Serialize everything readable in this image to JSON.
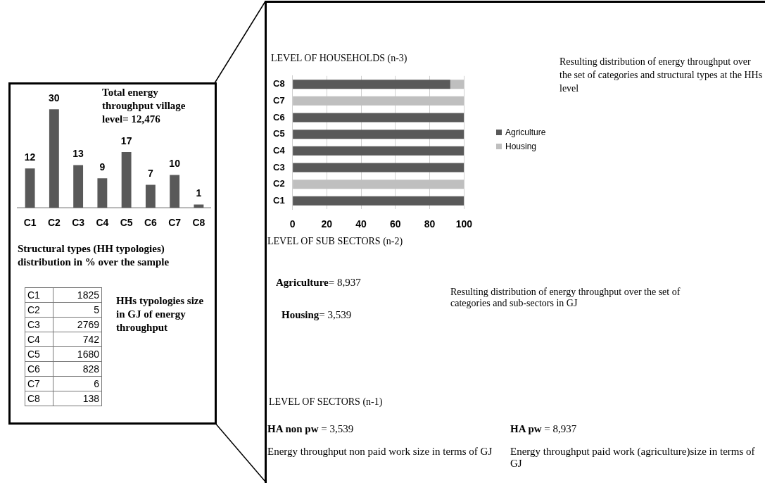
{
  "chart_data": [
    {
      "type": "bar",
      "title": "Total energy throughput  village level= 12,476",
      "xlabel": "Structural types (HH typologies) distribution in % over the sample",
      "categories": [
        "C1",
        "C2",
        "C3",
        "C4",
        "C5",
        "C6",
        "C7",
        "C8"
      ],
      "values": [
        12,
        30,
        13,
        9,
        17,
        7,
        10,
        1
      ],
      "color": "#595959",
      "data_labels": true,
      "grid": false,
      "legend": false
    },
    {
      "type": "other",
      "title": "HHs typologies size in GJ of energy throughput",
      "categories": [
        "C1",
        "C2",
        "C3",
        "C4",
        "C5",
        "C6",
        "C7",
        "C8"
      ],
      "values": [
        1825,
        5,
        2769,
        742,
        1680,
        828,
        6,
        138
      ],
      "data_labels": true
    },
    {
      "type": "bar",
      "orientation": "horizontal",
      "stacked": true,
      "title": "LEVEL OF HOUSEHOLDS (n-3)",
      "annotations": [
        "Resulting distribution of energy throughput over the set of categories  and structural types at the HHs level"
      ],
      "categories": [
        "C8",
        "C7",
        "C6",
        "C5",
        "C4",
        "C3",
        "C2",
        "C1"
      ],
      "series": [
        {
          "name": "Agriculture",
          "color": "#595959",
          "values": [
            92,
            0,
            100,
            100,
            100,
            100,
            0,
            100
          ]
        },
        {
          "name": "Housing",
          "color": "#bfbfbf",
          "values": [
            8,
            100,
            0,
            0,
            0,
            0,
            100,
            0
          ]
        }
      ],
      "xlim": [
        0,
        100
      ],
      "xticks": [
        0,
        20,
        40,
        60,
        80,
        100
      ],
      "grid": "x",
      "legend": "right"
    },
    {
      "type": "other",
      "title": "LEVEL OF SUB SECTORS (n-2)",
      "annotations": [
        "Agriculture= 8,937",
        "Housing= 3,539",
        "Resulting distribution of  energy throughput over the set of categories  and sub-sectors in GJ"
      ]
    },
    {
      "type": "other",
      "title": "LEVEL OF SECTORS (n-1)",
      "annotations": [
        "HA non pw = 3,539",
        "HA pw = 8,937",
        "Energy throughput  non paid work  size in terms of GJ",
        "Energy throughput  paid work  (agriculture)size in terms of GJ"
      ]
    }
  ]
}
